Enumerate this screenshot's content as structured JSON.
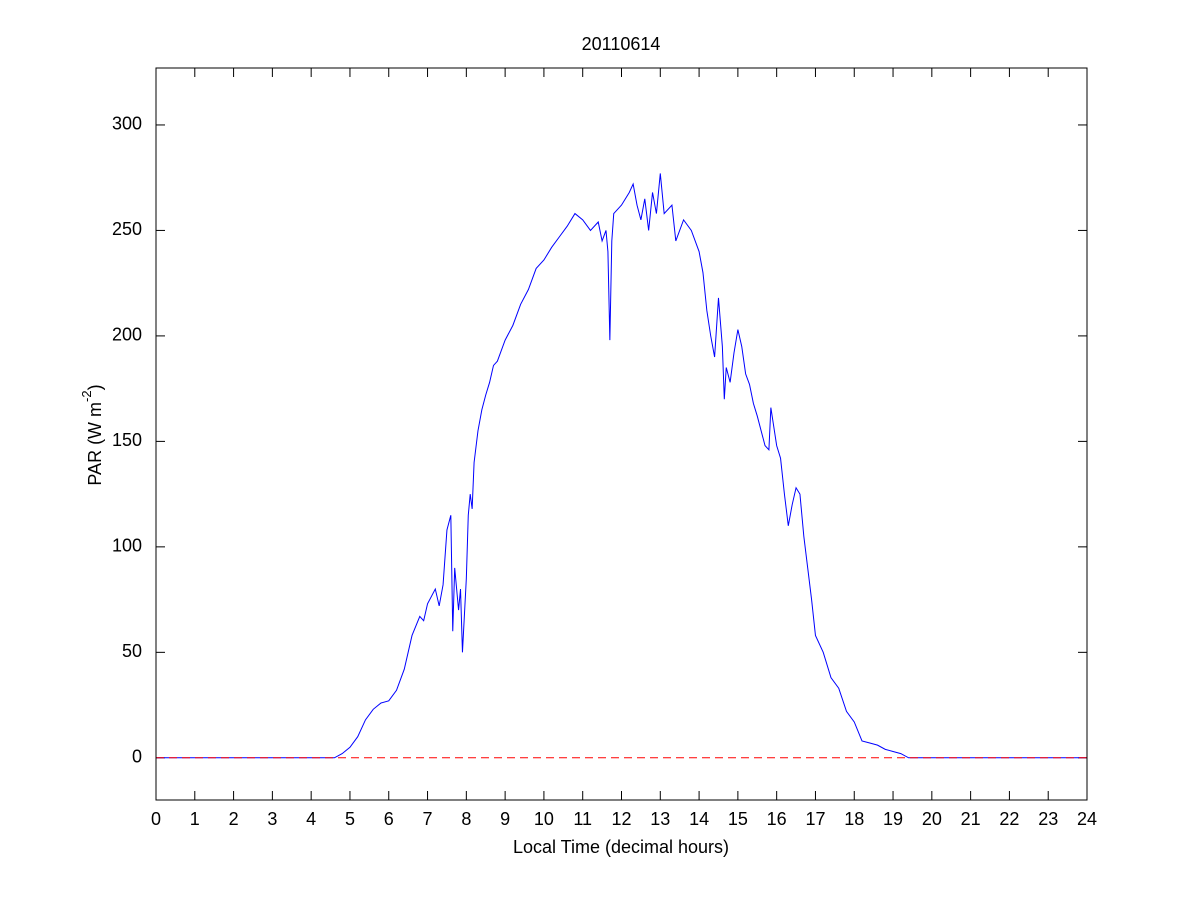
{
  "chart_data": {
    "type": "line",
    "title": "20110614",
    "xlabel": "Local Time (decimal hours)",
    "ylabel": {
      "text": "PAR (W m",
      "superscript": "-2",
      "suffix": ")"
    },
    "xlim": [
      0,
      24
    ],
    "ylim": [
      -20,
      327
    ],
    "xticks": [
      0,
      1,
      2,
      3,
      4,
      5,
      6,
      7,
      8,
      9,
      10,
      11,
      12,
      13,
      14,
      15,
      16,
      17,
      18,
      19,
      20,
      21,
      22,
      23,
      24
    ],
    "yticks": [
      0,
      50,
      100,
      150,
      200,
      250,
      300
    ],
    "grid": false,
    "series": [
      {
        "color": "#0000ff",
        "style": "solid",
        "x": [
          0,
          4.6,
          4.8,
          5.0,
          5.2,
          5.4,
          5.6,
          5.8,
          6.0,
          6.2,
          6.4,
          6.6,
          6.8,
          6.9,
          7.0,
          7.2,
          7.3,
          7.4,
          7.5,
          7.6,
          7.65,
          7.7,
          7.8,
          7.85,
          7.9,
          8.0,
          8.05,
          8.1,
          8.15,
          8.2,
          8.3,
          8.4,
          8.5,
          8.6,
          8.7,
          8.8,
          9.0,
          9.2,
          9.4,
          9.6,
          9.8,
          10.0,
          10.2,
          10.4,
          10.6,
          10.8,
          11.0,
          11.2,
          11.4,
          11.5,
          11.6,
          11.65,
          11.7,
          11.75,
          11.8,
          12.0,
          12.2,
          12.3,
          12.4,
          12.5,
          12.6,
          12.7,
          12.8,
          12.9,
          13.0,
          13.1,
          13.3,
          13.4,
          13.6,
          13.8,
          14.0,
          14.1,
          14.2,
          14.3,
          14.4,
          14.5,
          14.6,
          14.65,
          14.7,
          14.8,
          14.9,
          15.0,
          15.1,
          15.2,
          15.3,
          15.4,
          15.5,
          15.6,
          15.7,
          15.8,
          15.85,
          15.9,
          16.0,
          16.1,
          16.2,
          16.3,
          16.4,
          16.5,
          16.6,
          16.7,
          16.8,
          16.9,
          17.0,
          17.2,
          17.4,
          17.6,
          17.8,
          18.0,
          18.2,
          18.4,
          18.6,
          18.8,
          19.0,
          19.2,
          19.4,
          24
        ],
        "values": [
          0,
          0,
          2,
          5,
          10,
          18,
          23,
          26,
          27,
          32,
          42,
          58,
          67,
          65,
          73,
          80,
          72,
          82,
          108,
          115,
          60,
          90,
          70,
          80,
          50,
          85,
          115,
          125,
          118,
          140,
          155,
          165,
          172,
          178,
          186,
          188,
          198,
          205,
          215,
          222,
          232,
          236,
          242,
          247,
          252,
          258,
          255,
          250,
          254,
          245,
          250,
          240,
          198,
          245,
          258,
          262,
          268,
          272,
          262,
          255,
          265,
          250,
          268,
          258,
          277,
          258,
          262,
          245,
          255,
          250,
          240,
          230,
          212,
          200,
          190,
          218,
          195,
          170,
          185,
          178,
          192,
          203,
          195,
          182,
          177,
          168,
          162,
          155,
          148,
          146,
          166,
          160,
          148,
          142,
          125,
          110,
          120,
          128,
          125,
          105,
          90,
          75,
          58,
          50,
          38,
          33,
          22,
          17,
          8,
          7,
          6,
          4,
          3,
          2,
          0,
          0
        ]
      },
      {
        "color": "#ff0000",
        "style": "dashed",
        "x": [
          0,
          24
        ],
        "values": [
          0,
          0
        ]
      }
    ]
  }
}
